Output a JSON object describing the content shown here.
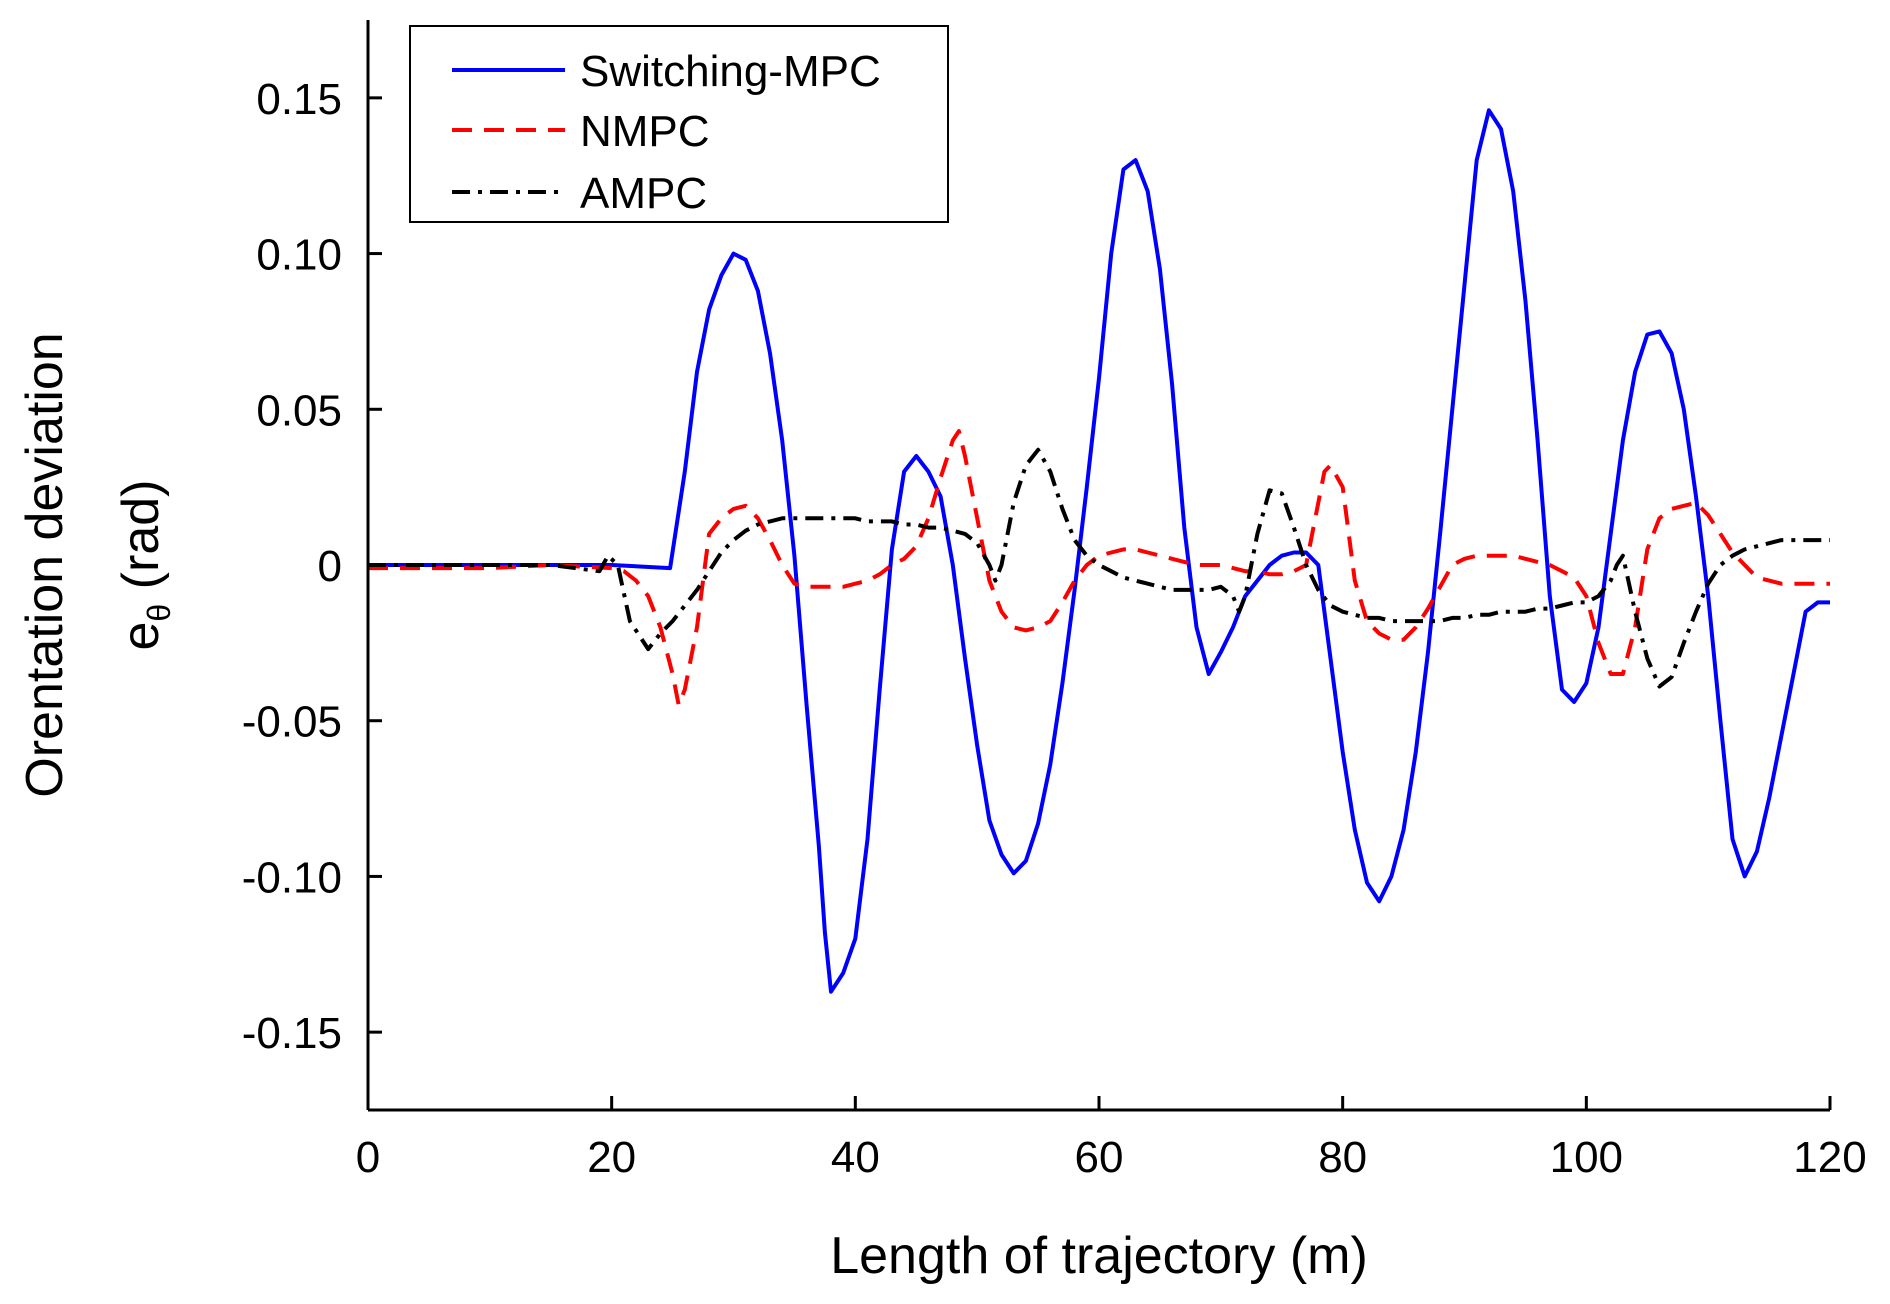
{
  "chart_data": {
    "type": "line",
    "title": "",
    "xlabel": "Length of trajectory (m)",
    "ylabel_line1": "Orentation deviation",
    "ylabel_line2_base": "e",
    "ylabel_line2_sub": "θ",
    "ylabel_line2_unit": " (rad)",
    "xlim": [
      0,
      120
    ],
    "ylim": [
      -0.175,
      0.175
    ],
    "xticks": [
      0,
      20,
      40,
      60,
      80,
      100,
      120
    ],
    "xtick_labels": [
      "0",
      "20",
      "40",
      "60",
      "80",
      "100",
      "120"
    ],
    "yticks": [
      0.15,
      0.1,
      0.05,
      0,
      -0.05,
      -0.1,
      -0.15
    ],
    "ytick_labels": [
      "0.15",
      "0.10",
      "0.05",
      "0",
      "-0.05",
      "-0.10",
      "-0.15"
    ],
    "grid": false,
    "legend_position": "top-left",
    "series": [
      {
        "name": "Switching-MPC",
        "color": "#0000ff",
        "dash": "solid",
        "x": [
          0,
          5,
          10,
          15,
          20,
          24.8,
          26,
          27,
          28,
          29,
          30,
          31,
          32,
          33,
          34,
          35,
          36,
          37,
          37.5,
          38,
          39,
          40,
          41,
          42,
          43,
          44,
          45,
          46,
          47,
          48,
          49,
          50,
          51,
          52,
          53,
          54,
          55,
          56,
          57,
          58,
          59,
          60,
          61,
          62,
          63,
          64,
          65,
          66,
          67,
          68,
          69,
          70,
          71,
          72,
          73,
          74,
          75,
          76,
          77,
          78,
          79,
          80,
          81,
          82,
          83,
          84,
          85,
          86,
          87,
          88,
          89,
          90,
          91,
          92,
          93,
          94,
          95,
          96,
          97,
          98,
          99,
          100,
          101,
          102,
          103,
          104,
          105,
          106,
          107,
          108,
          109,
          110,
          111,
          112,
          113,
          114,
          115,
          116,
          117,
          118,
          119,
          120
        ],
        "values": [
          0,
          0,
          0,
          0,
          0,
          -0.001,
          0.03,
          0.062,
          0.082,
          0.093,
          0.1,
          0.098,
          0.088,
          0.068,
          0.04,
          0.003,
          -0.045,
          -0.09,
          -0.118,
          -0.137,
          -0.131,
          -0.12,
          -0.088,
          -0.04,
          0.005,
          0.03,
          0.035,
          0.03,
          0.022,
          0.0,
          -0.03,
          -0.058,
          -0.082,
          -0.093,
          -0.099,
          -0.095,
          -0.083,
          -0.064,
          -0.038,
          -0.008,
          0.025,
          0.06,
          0.1,
          0.127,
          0.13,
          0.12,
          0.095,
          0.058,
          0.012,
          -0.02,
          -0.035,
          -0.028,
          -0.02,
          -0.01,
          -0.005,
          0.0,
          0.003,
          0.004,
          0.004,
          0.0,
          -0.03,
          -0.06,
          -0.085,
          -0.102,
          -0.108,
          -0.1,
          -0.085,
          -0.06,
          -0.028,
          0.01,
          0.05,
          0.09,
          0.13,
          0.146,
          0.14,
          0.12,
          0.085,
          0.04,
          -0.01,
          -0.04,
          -0.044,
          -0.038,
          -0.02,
          0.01,
          0.04,
          0.062,
          0.074,
          0.075,
          0.068,
          0.05,
          0.022,
          -0.01,
          -0.05,
          -0.088,
          -0.1,
          -0.092,
          -0.075,
          -0.055,
          -0.035,
          -0.015,
          -0.012,
          -0.012
        ]
      },
      {
        "name": "NMPC",
        "color": "#ff0000",
        "dash": "dashed",
        "x": [
          0,
          5,
          10,
          15,
          20,
          21,
          22,
          23,
          24,
          25,
          25.5,
          26,
          27,
          28,
          29,
          30,
          31,
          32,
          33,
          34,
          35,
          36,
          37,
          38,
          39,
          40,
          41,
          42,
          43,
          44,
          45,
          46,
          47,
          48,
          48.5,
          49,
          50,
          51,
          52,
          53,
          54,
          55,
          56,
          57,
          58,
          59,
          60,
          61,
          62,
          63,
          64,
          65,
          66,
          67,
          68,
          69,
          70,
          71,
          72,
          73,
          74,
          75,
          76,
          77,
          78,
          78.5,
          79,
          80,
          81,
          82,
          83,
          84,
          85,
          86,
          87,
          88,
          89,
          90,
          91,
          92,
          93,
          94,
          95,
          96,
          97,
          98,
          99,
          100,
          101,
          102,
          103,
          104,
          105,
          106,
          107,
          108,
          109,
          110,
          111,
          112,
          113,
          114,
          115,
          116,
          117,
          118,
          119,
          120
        ],
        "values": [
          -0.001,
          -0.001,
          -0.001,
          0,
          -0.001,
          -0.002,
          -0.005,
          -0.01,
          -0.02,
          -0.035,
          -0.045,
          -0.04,
          -0.02,
          0.01,
          0.015,
          0.018,
          0.019,
          0.015,
          0.008,
          0.0,
          -0.006,
          -0.007,
          -0.007,
          -0.007,
          -0.007,
          -0.006,
          -0.005,
          -0.003,
          0.0,
          0.002,
          0.006,
          0.015,
          0.028,
          0.04,
          0.043,
          0.035,
          0.015,
          -0.005,
          -0.015,
          -0.02,
          -0.021,
          -0.02,
          -0.018,
          -0.012,
          -0.005,
          0.0,
          0.003,
          0.004,
          0.005,
          0.005,
          0.004,
          0.003,
          0.002,
          0.001,
          0.0,
          0.0,
          0.0,
          -0.001,
          -0.002,
          -0.002,
          -0.003,
          -0.003,
          -0.002,
          0.0,
          0.02,
          0.03,
          0.032,
          0.025,
          -0.005,
          -0.018,
          -0.022,
          -0.024,
          -0.024,
          -0.02,
          -0.014,
          -0.007,
          0.0,
          0.002,
          0.003,
          0.003,
          0.003,
          0.003,
          0.002,
          0.001,
          0.0,
          -0.002,
          -0.004,
          -0.01,
          -0.025,
          -0.035,
          -0.035,
          -0.02,
          0.005,
          0.015,
          0.018,
          0.019,
          0.02,
          0.016,
          0.01,
          0.004,
          0.0,
          -0.004,
          -0.005,
          -0.006,
          -0.006,
          -0.006,
          -0.006,
          -0.006
        ]
      },
      {
        "name": "AMPC",
        "color": "#000000",
        "dash": "dashdot",
        "x": [
          0,
          5,
          10,
          15,
          19,
          19.7,
          20.5,
          21.5,
          23,
          24,
          25,
          26,
          27,
          28,
          29,
          30,
          31,
          32,
          33,
          34,
          35,
          36,
          37,
          38,
          39,
          40,
          41,
          42,
          43,
          44,
          45,
          46,
          47,
          48,
          49,
          50,
          51,
          51.5,
          52,
          53,
          54,
          55,
          56,
          57,
          58,
          59,
          60,
          61,
          62,
          63,
          64,
          65,
          66,
          67,
          68,
          69,
          70,
          71,
          71.5,
          72,
          73,
          74,
          75,
          76,
          77,
          78,
          79,
          80,
          81,
          82,
          83,
          84,
          85,
          86,
          87,
          88,
          89,
          90,
          91,
          92,
          93,
          94,
          95,
          96,
          97,
          98,
          99,
          100,
          101,
          102,
          102.5,
          103,
          104,
          105,
          106,
          107,
          108,
          109,
          110,
          111,
          112,
          113,
          114,
          115,
          116,
          117,
          118,
          119,
          120
        ],
        "values": [
          0,
          0,
          0,
          0,
          -0.002,
          0.003,
          0.0,
          -0.018,
          -0.027,
          -0.022,
          -0.018,
          -0.013,
          -0.008,
          -0.002,
          0.004,
          0.008,
          0.011,
          0.013,
          0.014,
          0.015,
          0.015,
          0.015,
          0.015,
          0.015,
          0.015,
          0.015,
          0.014,
          0.014,
          0.014,
          0.013,
          0.013,
          0.012,
          0.012,
          0.011,
          0.01,
          0.007,
          0.0,
          -0.005,
          0.0,
          0.02,
          0.032,
          0.037,
          0.03,
          0.018,
          0.008,
          0.003,
          0.0,
          -0.002,
          -0.004,
          -0.005,
          -0.006,
          -0.007,
          -0.008,
          -0.008,
          -0.008,
          -0.008,
          -0.007,
          -0.01,
          -0.015,
          -0.01,
          0.01,
          0.024,
          0.023,
          0.012,
          0.0,
          -0.008,
          -0.013,
          -0.015,
          -0.016,
          -0.017,
          -0.017,
          -0.018,
          -0.018,
          -0.018,
          -0.018,
          -0.018,
          -0.017,
          -0.017,
          -0.016,
          -0.016,
          -0.015,
          -0.015,
          -0.015,
          -0.014,
          -0.014,
          -0.013,
          -0.012,
          -0.012,
          -0.01,
          -0.005,
          0.0,
          0.003,
          -0.015,
          -0.03,
          -0.039,
          -0.036,
          -0.025,
          -0.015,
          -0.006,
          0.0,
          0.003,
          0.005,
          0.006,
          0.007,
          0.008,
          0.008,
          0.008,
          0.008,
          0.008
        ]
      }
    ]
  }
}
